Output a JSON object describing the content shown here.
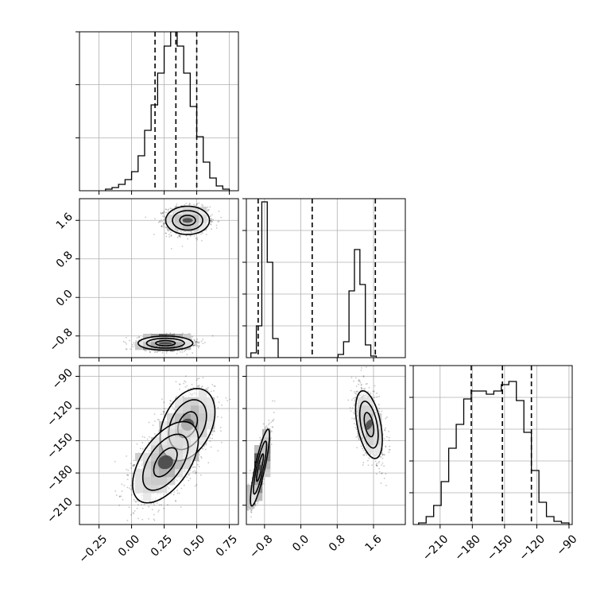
{
  "chart_data": {
    "type": "corner",
    "title": "",
    "params": [
      "",
      "",
      ""
    ],
    "colors": {
      "ink": "#000000",
      "grid": "#b0b0b0",
      "background": "#ffffff"
    },
    "panels": [
      {
        "id": "hist-p0",
        "type": "histogram",
        "row": 0,
        "col": 0,
        "xlim": [
          -0.4,
          0.82
        ],
        "ylim": [
          0,
          1.0
        ],
        "x_ticks": [
          -0.25,
          0.0,
          0.25,
          0.5,
          0.75
        ],
        "show_x_tick_labels": false,
        "y_ticks": [
          0.333,
          0.667,
          1.0
        ],
        "show_y_tick_labels": false,
        "bin_start": -0.2,
        "bin_width": 0.05,
        "counts": [
          0.01,
          0.02,
          0.04,
          0.07,
          0.12,
          0.22,
          0.38,
          0.54,
          0.74,
          0.91,
          1.0,
          0.91,
          0.74,
          0.53,
          0.34,
          0.18,
          0.08,
          0.03,
          0.01
        ],
        "quantiles": [
          0.18,
          0.34,
          0.5
        ]
      },
      {
        "id": "hist-p1",
        "type": "histogram",
        "row": 1,
        "col": 1,
        "xlim": [
          -1.2,
          2.3
        ],
        "ylim": [
          0,
          1.0
        ],
        "x_ticks": [
          -0.8,
          0.0,
          0.8,
          1.6
        ],
        "show_x_tick_labels": false,
        "y_ticks": [
          0.2,
          0.4,
          0.6,
          0.8,
          1.0
        ],
        "show_y_tick_labels": false,
        "bin_start": -1.1,
        "bin_width": 0.12,
        "counts": [
          0.03,
          0.2,
          0.98,
          0.6,
          0.12,
          0,
          0,
          0,
          0,
          0,
          0,
          0,
          0,
          0,
          0,
          0,
          0.02,
          0.1,
          0.42,
          0.68,
          0.46,
          0.08,
          0.01
        ],
        "quantiles": [
          -0.94,
          0.25,
          1.64
        ]
      },
      {
        "id": "hist-p2",
        "type": "histogram",
        "row": 2,
        "col": 2,
        "xlim": [
          -235,
          -87
        ],
        "ylim": [
          0,
          1.0
        ],
        "x_ticks": [
          -210,
          -180,
          -150,
          -120,
          -90
        ],
        "show_x_tick_labels": true,
        "y_ticks": [
          0.2,
          0.4,
          0.6,
          0.8,
          1.0
        ],
        "show_y_tick_labels": false,
        "bin_start": -230,
        "bin_width": 7,
        "counts": [
          0.01,
          0.05,
          0.12,
          0.27,
          0.48,
          0.63,
          0.79,
          0.84,
          0.84,
          0.82,
          0.84,
          0.88,
          0.9,
          0.78,
          0.58,
          0.34,
          0.14,
          0.05,
          0.02,
          0.01
        ],
        "quantiles": [
          -181,
          -152,
          -125
        ]
      },
      {
        "id": "scatter-p0-p1",
        "type": "density2d",
        "row": 1,
        "col": 0,
        "xlim": [
          -0.4,
          0.82
        ],
        "ylim": [
          -1.25,
          2.05
        ],
        "x_ticks": [
          -0.25,
          0.0,
          0.25,
          0.5,
          0.75
        ],
        "show_x_tick_labels": false,
        "y_ticks": [
          -0.8,
          0.0,
          0.8,
          1.6
        ],
        "show_y_tick_labels": true,
        "clusters": [
          {
            "mx": 0.43,
            "my": 1.6,
            "sx": 0.08,
            "sy": 0.14,
            "rho": 0.0,
            "n": 1400,
            "contours": [
              1.3,
              2.1,
              2.9
            ]
          },
          {
            "mx": 0.26,
            "my": -0.95,
            "sx": 0.1,
            "sy": 0.07,
            "rho": 0.0,
            "n": 1600,
            "contours": [
              1.3,
              2.1,
              2.9
            ]
          }
        ]
      },
      {
        "id": "scatter-p0-p2",
        "type": "density2d",
        "row": 2,
        "col": 0,
        "xlim": [
          -0.4,
          0.82
        ],
        "ylim": [
          -228,
          -80
        ],
        "x_ticks": [
          -0.25,
          0.0,
          0.25,
          0.5,
          0.75
        ],
        "show_x_tick_labels": true,
        "y_ticks": [
          -210,
          -180,
          -150,
          -120,
          -90
        ],
        "show_y_tick_labels": true,
        "clusters": [
          {
            "mx": 0.43,
            "my": -135,
            "sx": 0.1,
            "sy": 16,
            "rho": 0.35,
            "n": 1400,
            "contours": [
              1.3,
              2.1,
              2.7
            ]
          },
          {
            "mx": 0.26,
            "my": -170,
            "sx": 0.12,
            "sy": 18,
            "rho": 0.55,
            "n": 1700,
            "contours": [
              1.3,
              2.1,
              2.7
            ]
          }
        ]
      },
      {
        "id": "scatter-p1-p2",
        "type": "density2d",
        "row": 2,
        "col": 1,
        "xlim": [
          -1.2,
          2.3
        ],
        "ylim": [
          -228,
          -80
        ],
        "x_ticks": [
          -0.8,
          0.0,
          0.8,
          1.6
        ],
        "show_x_tick_labels": true,
        "y_ticks": [
          -210,
          -180,
          -150,
          -120,
          -90
        ],
        "show_y_tick_labels": false,
        "clusters": [
          {
            "mx": 1.5,
            "my": -135,
            "sx": 0.14,
            "sy": 15,
            "rho": -0.45,
            "n": 1400,
            "contours": [
              1.3,
              2.1,
              2.9
            ]
          },
          {
            "mx": -0.9,
            "my": -175,
            "sx": 0.1,
            "sy": 17,
            "rho": 0.85,
            "n": 1600,
            "contours": [
              1.3,
              2.1,
              2.9
            ]
          }
        ]
      }
    ]
  }
}
